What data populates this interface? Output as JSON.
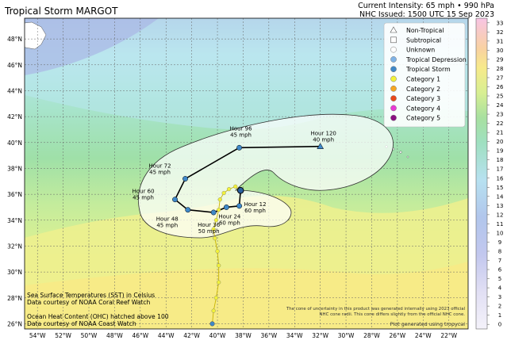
{
  "header": {
    "title": "Tropical Storm MARGOT",
    "intensity": "Current Intensity: 65 mph • 990 hPa",
    "issued": "NHC Issued: 1500 UTC 15 Sep 2023"
  },
  "map": {
    "lat_labels": [
      "48°N",
      "46°N",
      "44°N",
      "42°N",
      "40°N",
      "38°N",
      "36°N",
      "34°N",
      "32°N",
      "30°N",
      "28°N",
      "26°N"
    ],
    "lon_labels": [
      "54°W",
      "52°W",
      "50°W",
      "48°W",
      "46°W",
      "44°W",
      "42°W",
      "40°W",
      "38°W",
      "36°W",
      "34°W",
      "32°W",
      "30°W",
      "28°W",
      "26°W",
      "24°W",
      "22°W"
    ],
    "lon_range": [
      -55,
      -20.5
    ],
    "lat_range": [
      25.6,
      49.6
    ]
  },
  "legend": {
    "items": [
      {
        "label": "Non-Tropical",
        "shape": "triangle",
        "color": "#ffffff"
      },
      {
        "label": "Subtropical",
        "shape": "square",
        "color": "#ffffff"
      },
      {
        "label": "Unknown",
        "shape": "circle",
        "color": "#ffffff"
      },
      {
        "label": "Tropical Depression",
        "shape": "circle",
        "color": "#7fb3e6"
      },
      {
        "label": "Tropical Storm",
        "shape": "circle",
        "color": "#3f88c8"
      },
      {
        "label": "Category 1",
        "shape": "circle",
        "color": "#f2f23a"
      },
      {
        "label": "Category 2",
        "shape": "circle",
        "color": "#f5a623"
      },
      {
        "label": "Category 3",
        "shape": "circle",
        "color": "#e8471a"
      },
      {
        "label": "Category 4",
        "shape": "circle",
        "color": "#e83bd4"
      },
      {
        "label": "Category 5",
        "shape": "circle",
        "color": "#8a0f82"
      }
    ]
  },
  "colorbar": {
    "ticks": [
      "33",
      "32",
      "31",
      "30",
      "29",
      "28",
      "27",
      "26",
      "25",
      "24",
      "23",
      "22",
      "21",
      "20",
      "19",
      "18",
      "17",
      "16",
      "15",
      "14",
      "13",
      "12",
      "11",
      "10",
      "9",
      "8",
      "7",
      "6",
      "5",
      "4",
      "3",
      "2",
      "1",
      "0"
    ]
  },
  "forecast_points": [
    {
      "hour": "Hour 12",
      "wind": "60 mph",
      "lon": -38.3,
      "lat": 35.1
    },
    {
      "hour": "Hour 24",
      "wind": "60 mph",
      "lon": -39.3,
      "lat": 35.0
    },
    {
      "hour": "Hour 36",
      "wind": "50 mph",
      "lon": -40.3,
      "lat": 34.6
    },
    {
      "hour": "Hour 48",
      "wind": "45 mph",
      "lon": -42.3,
      "lat": 34.8
    },
    {
      "hour": "Hour 60",
      "wind": "45 mph",
      "lon": -43.3,
      "lat": 35.6
    },
    {
      "hour": "Hour 72",
      "wind": "45 mph",
      "lon": -42.5,
      "lat": 37.2
    },
    {
      "hour": "Hour 96",
      "wind": "45 mph",
      "lon": -38.3,
      "lat": 39.6
    },
    {
      "hour": "Hour 120",
      "wind": "40 mph",
      "lon": -32.0,
      "lat": 39.7
    }
  ],
  "notes": {
    "sst_1": "Sea Surface Temperatures (SST) in Celsius",
    "sst_2": "Data courtesy of NOAA Coral Reef Watch",
    "ohc_1": "Ocean Heat Content (OHC) hatched above 100",
    "ohc_2": "Data courtesy of NOAA Coast Watch",
    "cone_1": "The cone of uncertainty in this product was generated internally using 2023 official",
    "cone_2": "NHC cone radii. This cone differs slightly from the official NHC cone.",
    "credit": "Plot generated using tropycal"
  }
}
